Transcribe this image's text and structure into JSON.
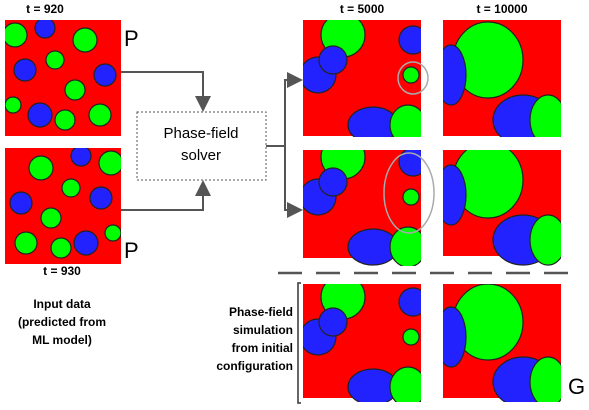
{
  "left": {
    "time_top": "t = 920",
    "time_bottom": "t = 930",
    "markers": [
      "P",
      "P"
    ],
    "caption": [
      "Input data",
      "(predicted from",
      "ML model)"
    ]
  },
  "solver": {
    "label": [
      "Phase-field",
      "solver"
    ]
  },
  "right": {
    "columns": [
      "t = 5000",
      "t = 10000"
    ],
    "caption": [
      "Phase-field",
      "simulation",
      "from initial",
      "configuration"
    ],
    "marker": "G"
  }
}
